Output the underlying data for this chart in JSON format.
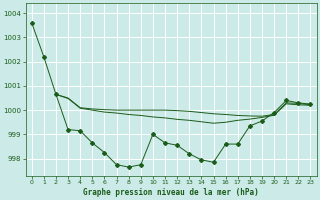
{
  "title": "Graphe pression niveau de la mer (hPa)",
  "bg_color": "#cceae7",
  "grid_color": "#ffffff",
  "line_color": "#1a5c1a",
  "xlim": [
    -0.5,
    23.5
  ],
  "ylim": [
    997.3,
    1004.4
  ],
  "yticks": [
    998,
    999,
    1000,
    1001,
    1002,
    1003,
    1004
  ],
  "xticks": [
    0,
    1,
    2,
    3,
    4,
    5,
    6,
    7,
    8,
    9,
    10,
    11,
    12,
    13,
    14,
    15,
    16,
    17,
    18,
    19,
    20,
    21,
    22,
    23
  ],
  "series1_x": [
    0,
    1,
    2,
    3,
    4,
    5,
    6,
    7,
    8,
    9,
    10,
    11,
    12,
    13,
    14,
    15,
    16,
    17,
    18,
    19,
    20,
    21,
    22,
    23
  ],
  "series1_y": [
    1003.6,
    1002.2,
    1000.65,
    999.2,
    999.15,
    998.65,
    998.25,
    997.75,
    997.65,
    997.75,
    999.0,
    998.65,
    998.55,
    998.2,
    997.95,
    997.85,
    998.6,
    998.6,
    999.35,
    999.55,
    999.9,
    1000.4,
    1000.3,
    1000.25
  ],
  "series2_x": [
    2,
    3,
    4,
    5,
    6,
    7,
    8,
    9,
    10,
    11,
    12,
    13,
    14,
    15,
    16,
    17,
    18,
    19,
    20,
    21,
    22,
    23
  ],
  "series2_y": [
    1000.65,
    1000.5,
    1000.1,
    1000.05,
    1000.02,
    1000.0,
    1000.0,
    1000.0,
    1000.0,
    1000.0,
    999.98,
    999.95,
    999.9,
    999.85,
    999.82,
    999.78,
    999.76,
    999.75,
    999.82,
    1000.3,
    1000.28,
    1000.22
  ],
  "series3_x": [
    2,
    3,
    4,
    5,
    6,
    7,
    8,
    9,
    10,
    11,
    12,
    13,
    14,
    15,
    16,
    17,
    18,
    19,
    20,
    21,
    22,
    23
  ],
  "series3_y": [
    1000.65,
    1000.48,
    1000.08,
    1000.0,
    999.92,
    999.88,
    999.82,
    999.78,
    999.72,
    999.68,
    999.62,
    999.58,
    999.52,
    999.46,
    999.5,
    999.58,
    999.63,
    999.7,
    999.79,
    1000.26,
    1000.22,
    1000.2
  ]
}
